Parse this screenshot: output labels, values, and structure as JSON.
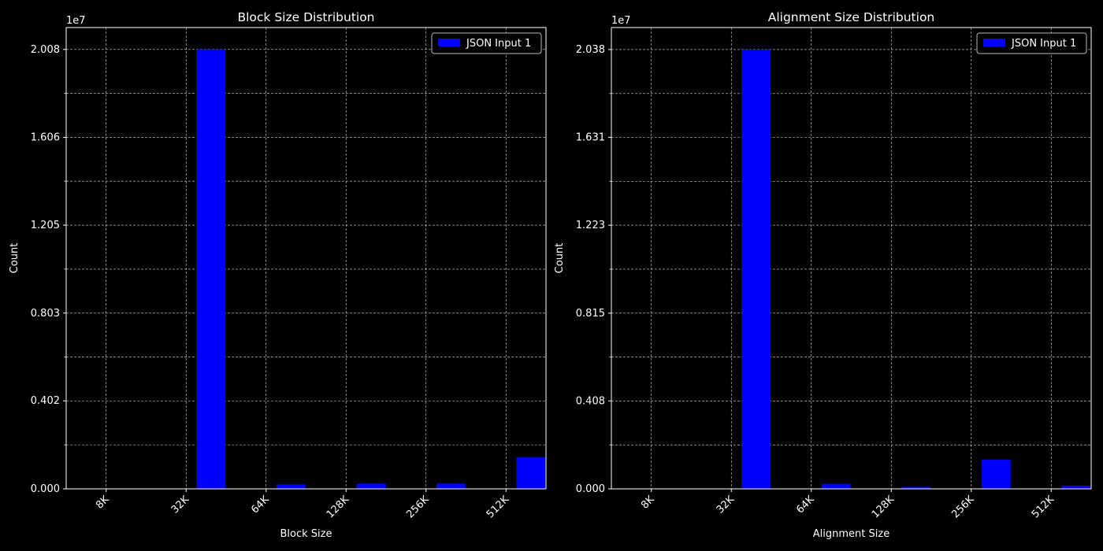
{
  "chart_data": [
    {
      "type": "bar",
      "title": "Block Size Distribution",
      "xlabel": "Block Size",
      "ylabel": "Count",
      "offset_label": "1e7",
      "categories": [
        "8K",
        "32K",
        "64K",
        "128K",
        "256K",
        "512K"
      ],
      "series": [
        {
          "name": "JSON Input 1",
          "color": "#0000ff",
          "values": [
            0,
            20080000,
            200000,
            240000,
            240000,
            1450000
          ]
        }
      ],
      "ylim": [
        0,
        21080000
      ],
      "yticks": [
        0,
        4020000,
        8030000,
        12050000,
        16060000,
        20080000
      ],
      "ytick_labels": [
        "0.000",
        "0.402",
        "0.803",
        "1.205",
        "1.606",
        "2.008"
      ],
      "minor_yticks": [
        2010000,
        6020000,
        10040000,
        14060000,
        18070000
      ],
      "grid": true,
      "legend": "top-right"
    },
    {
      "type": "bar",
      "title": "Alignment Size Distribution",
      "xlabel": "Alignment Size",
      "ylabel": "Count",
      "offset_label": "1e7",
      "categories": [
        "8K",
        "32K",
        "64K",
        "128K",
        "256K",
        "512K"
      ],
      "series": [
        {
          "name": "JSON Input 1",
          "color": "#0000ff",
          "values": [
            0,
            20380000,
            230000,
            90000,
            1350000,
            150000
          ]
        }
      ],
      "ylim": [
        0,
        21400000
      ],
      "yticks": [
        0,
        4080000,
        8150000,
        12230000,
        16310000,
        20380000
      ],
      "ytick_labels": [
        "0.000",
        "0.408",
        "0.815",
        "1.223",
        "1.631",
        "2.038"
      ],
      "minor_yticks": [
        2040000,
        6120000,
        10190000,
        14270000,
        18340000
      ],
      "grid": true,
      "legend": "top-right"
    }
  ]
}
